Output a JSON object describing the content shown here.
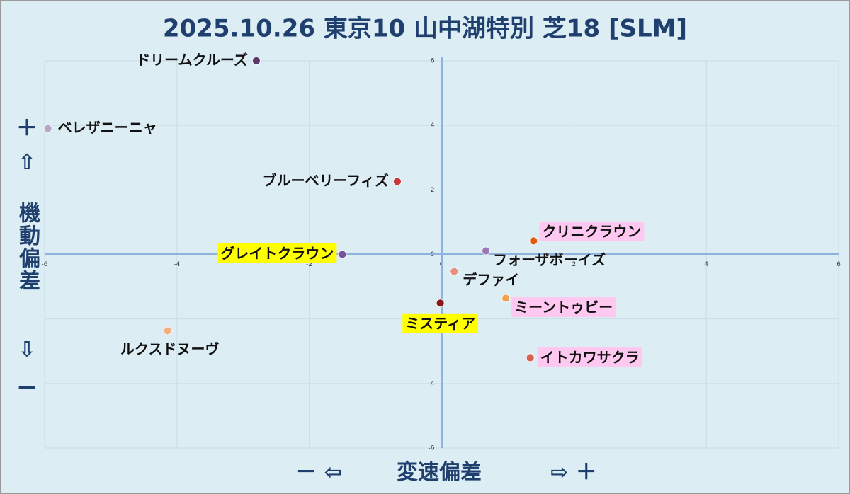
{
  "chart_data": {
    "type": "scatter",
    "title": "2025.10.26 東京10 山中湖特別 芝18 [SLM]",
    "xlabel": "変速偏差",
    "x_negative": "－ ⇦",
    "x_positive": "⇨ ＋",
    "ylabel": "機動偏差",
    "y_positive": [
      "＋",
      "⇧"
    ],
    "y_negative": [
      "⇩",
      "－"
    ],
    "xlim": [
      -6,
      6
    ],
    "ylim": [
      -6,
      6
    ],
    "xticks": [
      -6,
      -4,
      -2,
      0,
      2,
      4,
      6
    ],
    "yticks": [
      -6,
      -4,
      -2,
      0,
      2,
      4,
      6
    ],
    "grid": true,
    "points": [
      {
        "name": "ドリームクルーズ",
        "x": -2.8,
        "y": 6.0,
        "color": "#5a3a6e"
      },
      {
        "name": "ベレザニーニャ",
        "x": -5.95,
        "y": 3.9,
        "color": "#b8a6c8"
      },
      {
        "name": "ブルーベリーフィズ",
        "x": -0.67,
        "y": 2.26,
        "color": "#c83a3a"
      },
      {
        "name": "グレイトクラウン",
        "x": -1.5,
        "y": 0.0,
        "color": "#7a4ea0",
        "highlight": "#ffff00"
      },
      {
        "name": "クリニクラウン",
        "x": 1.39,
        "y": 0.42,
        "color": "#e05a10",
        "highlight": "#ffc8f0"
      },
      {
        "name": "フォーザボーイズ",
        "x": 0.67,
        "y": 0.11,
        "color": "#9a78b8"
      },
      {
        "name": "デファイ",
        "x": 0.19,
        "y": -0.53,
        "color": "#e89080"
      },
      {
        "name": "ミーントゥビー",
        "x": 0.97,
        "y": -1.36,
        "color": "#f0a050",
        "highlight": "#ffc8f0"
      },
      {
        "name": "ミスティア",
        "x": -0.02,
        "y": -1.51,
        "color": "#8a1a1a",
        "highlight": "#ffff00"
      },
      {
        "name": "ルクスドヌーヴ",
        "x": -4.14,
        "y": -2.37,
        "color": "#f0b080"
      },
      {
        "name": "イトカワサクラ",
        "x": 1.34,
        "y": -3.2,
        "color": "#d86050",
        "highlight": "#ffc8f0"
      }
    ]
  }
}
